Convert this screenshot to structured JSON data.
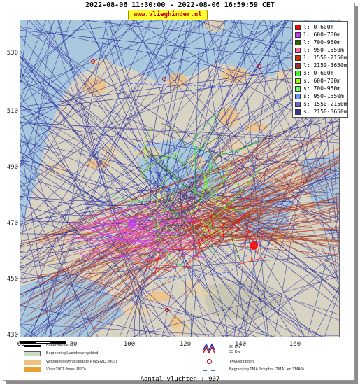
{
  "header": {
    "period": "2022-08-06 11:30:00 - 2022-08-06 16:59:59 CET",
    "brand": "www.vlieghinder.nl"
  },
  "axes": {
    "y_ticks": [
      "530",
      "510",
      "490",
      "470",
      "450",
      "430"
    ],
    "x_ticks": [
      "60",
      "80",
      "100",
      "120",
      "140",
      "160"
    ]
  },
  "legend": [
    {
      "label": "l: 0-600m",
      "color": "#ff0000"
    },
    {
      "label": "l: 600-700m",
      "color": "#cc33ff"
    },
    {
      "label": "l: 700-950m",
      "color": "#336600"
    },
    {
      "label": "l: 950-1550m",
      "color": "#ff6699"
    },
    {
      "label": "l: 1550-2150m",
      "color": "#cc3300"
    },
    {
      "label": "l: 2150-3650m",
      "color": "#993333"
    },
    {
      "label": "s: 0-600m",
      "color": "#33ff33"
    },
    {
      "label": "s: 600-700m",
      "color": "#99ff00"
    },
    {
      "label": "s: 700-950m",
      "color": "#66ff66"
    },
    {
      "label": "s: 950-1550m",
      "color": "#6699ff"
    },
    {
      "label": "s: 1550-2150m",
      "color": "#6666cc"
    },
    {
      "label": "s: 2150-3650m",
      "color": "#333399"
    }
  ],
  "key": {
    "baan": "Banenstelsel",
    "lucht": "Begrenzing Luchthavengebied",
    "woon": "Woonbebouwing (update RWS-MD 2001)",
    "vinex": "Vinex2001 (bron: RPD)",
    "kw20": "20 Kw",
    "kw35": "35 Kw",
    "tma_exit": "TMA exit point",
    "tma_border": "Begrenzing TMA Schiphol  (TMA1 en TMA3)"
  },
  "footer": {
    "count": "Aantal vluchten : 907"
  },
  "colors": {
    "sea": "#a9c7dd",
    "land": "#d9d3c3",
    "blue_tracks": "#1a1a8c",
    "red_tracks": "#b03010"
  }
}
